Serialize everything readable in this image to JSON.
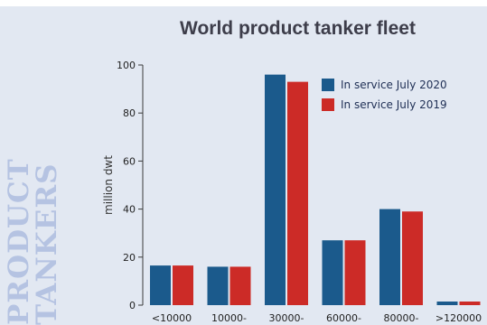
{
  "side_label": [
    "PRODUCT",
    "TANKERS"
  ],
  "chart_data": {
    "type": "bar",
    "title": "World product tanker fleet",
    "ylabel": "million dwt",
    "ylim": [
      0,
      100
    ],
    "yticks": [
      0,
      20,
      40,
      60,
      80,
      100
    ],
    "categories": [
      "<10000",
      "10000-",
      "30000-",
      "60000-",
      "80000-",
      ">120000"
    ],
    "series": [
      {
        "name": "In service July 2020",
        "color": "#1b5a8c",
        "values": [
          16.5,
          16,
          96,
          27,
          40,
          1.5
        ]
      },
      {
        "name": "In service July 2019",
        "color": "#cc2b27",
        "values": [
          16.5,
          16,
          93,
          27,
          39,
          1.5
        ]
      }
    ],
    "legend_position": "top-right",
    "grid": false
  }
}
